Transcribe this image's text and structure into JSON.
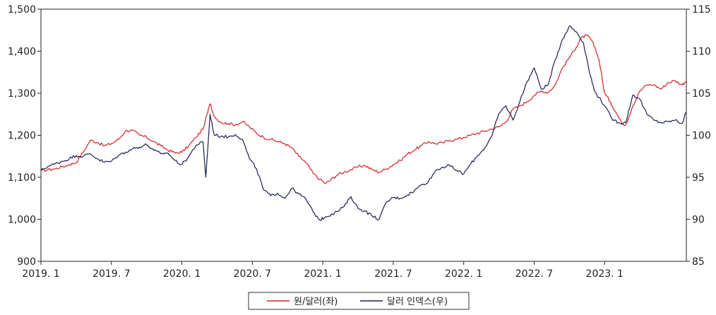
{
  "chart_data": {
    "type": "line",
    "title": "",
    "grid": false,
    "legend_position": "bottom-center",
    "x_ticks": [
      "2019. 1",
      "2019. 7",
      "2020. 1",
      "2020. 7",
      "2021. 1",
      "2021. 7",
      "2022. 1",
      "2022. 7",
      "2023. 1"
    ],
    "x_range": [
      2019.0,
      2023.58
    ],
    "y_left": {
      "range": [
        900,
        1500
      ],
      "ticks": [
        "900",
        "1,000",
        "1,100",
        "1,200",
        "1,300",
        "1,400",
        "1,500"
      ]
    },
    "y_right": {
      "range": [
        85,
        115
      ],
      "ticks": [
        "85",
        "90",
        "95",
        "100",
        "105",
        "110",
        "115"
      ]
    },
    "series": [
      {
        "name": "원/달러(좌)",
        "axis": "left",
        "color": "#d32020",
        "points": [
          [
            2019.0,
            1115
          ],
          [
            2019.05,
            1118
          ],
          [
            2019.1,
            1120
          ],
          [
            2019.15,
            1125
          ],
          [
            2019.2,
            1130
          ],
          [
            2019.25,
            1135
          ],
          [
            2019.3,
            1160
          ],
          [
            2019.35,
            1188
          ],
          [
            2019.4,
            1183
          ],
          [
            2019.45,
            1175
          ],
          [
            2019.5,
            1180
          ],
          [
            2019.55,
            1190
          ],
          [
            2019.6,
            1210
          ],
          [
            2019.65,
            1212
          ],
          [
            2019.7,
            1200
          ],
          [
            2019.75,
            1195
          ],
          [
            2019.8,
            1185
          ],
          [
            2019.85,
            1175
          ],
          [
            2019.9,
            1165
          ],
          [
            2019.95,
            1158
          ],
          [
            2020.0,
            1160
          ],
          [
            2020.05,
            1175
          ],
          [
            2020.1,
            1195
          ],
          [
            2020.15,
            1215
          ],
          [
            2020.2,
            1275
          ],
          [
            2020.23,
            1245
          ],
          [
            2020.28,
            1230
          ],
          [
            2020.33,
            1228
          ],
          [
            2020.38,
            1225
          ],
          [
            2020.43,
            1232
          ],
          [
            2020.48,
            1220
          ],
          [
            2020.53,
            1205
          ],
          [
            2020.58,
            1195
          ],
          [
            2020.63,
            1190
          ],
          [
            2020.68,
            1185
          ],
          [
            2020.73,
            1180
          ],
          [
            2020.78,
            1170
          ],
          [
            2020.83,
            1150
          ],
          [
            2020.88,
            1135
          ],
          [
            2020.93,
            1110
          ],
          [
            2020.98,
            1095
          ],
          [
            2021.02,
            1085
          ],
          [
            2021.06,
            1095
          ],
          [
            2021.1,
            1105
          ],
          [
            2021.15,
            1112
          ],
          [
            2021.2,
            1118
          ],
          [
            2021.25,
            1125
          ],
          [
            2021.3,
            1128
          ],
          [
            2021.35,
            1118
          ],
          [
            2021.4,
            1112
          ],
          [
            2021.45,
            1120
          ],
          [
            2021.5,
            1130
          ],
          [
            2021.55,
            1140
          ],
          [
            2021.6,
            1155
          ],
          [
            2021.65,
            1165
          ],
          [
            2021.7,
            1175
          ],
          [
            2021.75,
            1185
          ],
          [
            2021.8,
            1180
          ],
          [
            2021.85,
            1182
          ],
          [
            2021.9,
            1188
          ],
          [
            2021.95,
            1190
          ],
          [
            2022.0,
            1195
          ],
          [
            2022.05,
            1200
          ],
          [
            2022.1,
            1205
          ],
          [
            2022.15,
            1210
          ],
          [
            2022.2,
            1215
          ],
          [
            2022.25,
            1220
          ],
          [
            2022.3,
            1232
          ],
          [
            2022.35,
            1262
          ],
          [
            2022.4,
            1270
          ],
          [
            2022.45,
            1280
          ],
          [
            2022.5,
            1295
          ],
          [
            2022.55,
            1305
          ],
          [
            2022.6,
            1302
          ],
          [
            2022.65,
            1320
          ],
          [
            2022.7,
            1360
          ],
          [
            2022.75,
            1385
          ],
          [
            2022.8,
            1410
          ],
          [
            2022.83,
            1430
          ],
          [
            2022.87,
            1438
          ],
          [
            2022.9,
            1430
          ],
          [
            2022.93,
            1410
          ],
          [
            2022.96,
            1380
          ],
          [
            2023.0,
            1300
          ],
          [
            2023.04,
            1280
          ],
          [
            2023.08,
            1255
          ],
          [
            2023.12,
            1230
          ],
          [
            2023.15,
            1225
          ],
          [
            2023.2,
            1270
          ],
          [
            2023.25,
            1305
          ],
          [
            2023.3,
            1320
          ],
          [
            2023.35,
            1320
          ],
          [
            2023.4,
            1310
          ],
          [
            2023.45,
            1325
          ],
          [
            2023.5,
            1330
          ],
          [
            2023.55,
            1320
          ],
          [
            2023.58,
            1330
          ]
        ]
      },
      {
        "name": "달러 인덱스(우)",
        "axis": "right",
        "color": "#1a2050",
        "points": [
          [
            2019.0,
            95.8
          ],
          [
            2019.05,
            96.3
          ],
          [
            2019.1,
            96.6
          ],
          [
            2019.15,
            96.9
          ],
          [
            2019.2,
            97.2
          ],
          [
            2019.25,
            97.6
          ],
          [
            2019.3,
            97.5
          ],
          [
            2019.35,
            97.8
          ],
          [
            2019.4,
            97.2
          ],
          [
            2019.45,
            96.8
          ],
          [
            2019.5,
            96.9
          ],
          [
            2019.55,
            97.6
          ],
          [
            2019.6,
            98.0
          ],
          [
            2019.65,
            98.4
          ],
          [
            2019.7,
            98.6
          ],
          [
            2019.75,
            98.9
          ],
          [
            2019.8,
            98.2
          ],
          [
            2019.85,
            97.8
          ],
          [
            2019.9,
            97.9
          ],
          [
            2019.95,
            97.0
          ],
          [
            2020.0,
            96.5
          ],
          [
            2020.05,
            97.5
          ],
          [
            2020.1,
            98.8
          ],
          [
            2020.15,
            99.2
          ],
          [
            2020.17,
            95.0
          ],
          [
            2020.2,
            102.5
          ],
          [
            2020.23,
            100.0
          ],
          [
            2020.28,
            99.9
          ],
          [
            2020.33,
            99.8
          ],
          [
            2020.38,
            100.1
          ],
          [
            2020.43,
            99.5
          ],
          [
            2020.48,
            97.2
          ],
          [
            2020.53,
            96.0
          ],
          [
            2020.58,
            93.5
          ],
          [
            2020.63,
            92.8
          ],
          [
            2020.68,
            93.1
          ],
          [
            2020.73,
            92.5
          ],
          [
            2020.78,
            93.7
          ],
          [
            2020.83,
            93.0
          ],
          [
            2020.88,
            92.4
          ],
          [
            2020.93,
            90.9
          ],
          [
            2020.98,
            89.9
          ],
          [
            2021.02,
            90.3
          ],
          [
            2021.06,
            90.6
          ],
          [
            2021.1,
            90.9
          ],
          [
            2021.15,
            91.5
          ],
          [
            2021.2,
            92.7
          ],
          [
            2021.25,
            91.3
          ],
          [
            2021.3,
            91.0
          ],
          [
            2021.35,
            90.4
          ],
          [
            2021.4,
            90.0
          ],
          [
            2021.45,
            92.0
          ],
          [
            2021.5,
            92.6
          ],
          [
            2021.55,
            92.5
          ],
          [
            2021.6,
            92.9
          ],
          [
            2021.65,
            93.4
          ],
          [
            2021.7,
            94.1
          ],
          [
            2021.75,
            94.5
          ],
          [
            2021.8,
            95.8
          ],
          [
            2021.85,
            96.2
          ],
          [
            2021.9,
            96.4
          ],
          [
            2021.95,
            95.8
          ],
          [
            2022.0,
            95.4
          ],
          [
            2022.05,
            96.6
          ],
          [
            2022.1,
            97.6
          ],
          [
            2022.15,
            98.5
          ],
          [
            2022.2,
            99.9
          ],
          [
            2022.25,
            102.6
          ],
          [
            2022.3,
            103.5
          ],
          [
            2022.35,
            101.8
          ],
          [
            2022.4,
            104.1
          ],
          [
            2022.45,
            106.4
          ],
          [
            2022.5,
            108.0
          ],
          [
            2022.55,
            105.5
          ],
          [
            2022.6,
            106.0
          ],
          [
            2022.65,
            109.0
          ],
          [
            2022.7,
            111.4
          ],
          [
            2022.75,
            113.0
          ],
          [
            2022.8,
            112.3
          ],
          [
            2022.85,
            111.0
          ],
          [
            2022.9,
            107.0
          ],
          [
            2022.93,
            105.2
          ],
          [
            2022.96,
            104.5
          ],
          [
            2023.0,
            103.5
          ],
          [
            2023.05,
            102.0
          ],
          [
            2023.1,
            101.5
          ],
          [
            2023.15,
            101.5
          ],
          [
            2023.2,
            104.8
          ],
          [
            2023.25,
            104.3
          ],
          [
            2023.3,
            102.5
          ],
          [
            2023.35,
            101.8
          ],
          [
            2023.4,
            101.5
          ],
          [
            2023.45,
            101.6
          ],
          [
            2023.5,
            101.8
          ],
          [
            2023.55,
            101.4
          ],
          [
            2023.58,
            102.8
          ]
        ]
      }
    ]
  }
}
